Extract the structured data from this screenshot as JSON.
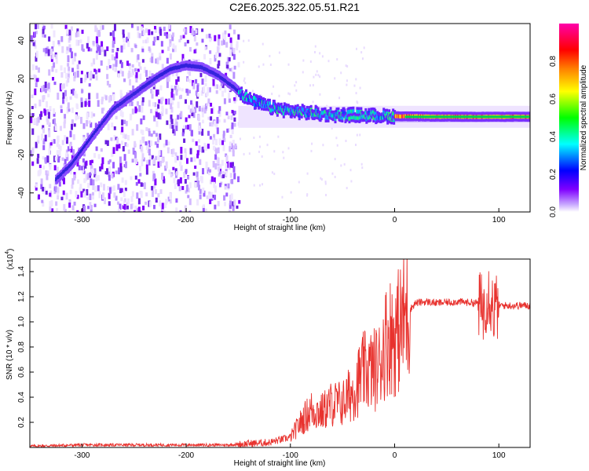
{
  "title": "C2E6.2025.322.05.51.R21",
  "chart_data": [
    {
      "type": "heatmap",
      "xlabel": "Height of straight line (km)",
      "ylabel": "Frequency (Hz)",
      "xlim": [
        -350,
        130
      ],
      "ylim": [
        -50,
        49
      ],
      "x_ticks": [
        "-300",
        "-200",
        "-100",
        "0",
        "100"
      ],
      "y_ticks": [
        "40",
        "20",
        "0",
        "-20",
        "-40"
      ],
      "colorbar": {
        "label": "Normalized spectral amplitude",
        "range": [
          0.0,
          1.0
        ],
        "ticks": [
          "0.0",
          "0.2",
          "0.4",
          "0.6",
          "0.8"
        ],
        "colors": [
          "#ffffff",
          "#7f00ff",
          "#0000ff",
          "#00ffff",
          "#00ff00",
          "#ffff00",
          "#ff8000",
          "#ff0000",
          "#ff00ff"
        ]
      },
      "noise_region_x": [
        -350,
        -150
      ],
      "signal_trace": {
        "x": [
          -325,
          -310,
          -290,
          -270,
          -250,
          -230,
          -215,
          -200,
          -185,
          -170,
          -155,
          -140,
          -120,
          -100,
          -80,
          -60,
          -40,
          -20,
          0,
          50,
          130
        ],
        "y": [
          -33,
          -25,
          -10,
          4,
          12,
          20,
          25,
          27,
          26,
          22,
          16,
          9,
          5,
          3,
          2,
          1,
          1,
          0.5,
          0.3,
          0,
          0
        ]
      },
      "grid": false
    },
    {
      "type": "line",
      "xlabel": "Height of straight line (km)",
      "ylabel": "SNR (10 * v/v)",
      "y_scale_note": "(x10",
      "y_scale_exp": "4",
      "xlim": [
        -350,
        130
      ],
      "ylim": [
        0.0,
        1.5
      ],
      "x_ticks": [
        "-300",
        "-200",
        "-100",
        "0",
        "100"
      ],
      "y_ticks": [
        "0.2",
        "0.4",
        "0.6",
        "0.8",
        "1.0",
        "1.2",
        "1.4"
      ],
      "series": [
        {
          "color": "#e8322e",
          "x": [
            -350,
            -300,
            -250,
            -200,
            -160,
            -140,
            -120,
            -100,
            -90,
            -80,
            -70,
            -60,
            -50,
            -40,
            -30,
            -20,
            -15,
            -10,
            -5,
            0,
            5,
            10,
            15,
            20,
            30,
            40,
            60,
            80,
            85,
            90,
            95,
            100,
            110,
            130
          ],
          "y": [
            0.01,
            0.02,
            0.02,
            0.02,
            0.02,
            0.03,
            0.04,
            0.08,
            0.2,
            0.3,
            0.28,
            0.35,
            0.35,
            0.45,
            0.6,
            0.62,
            0.65,
            0.82,
            0.9,
            0.88,
            0.95,
            1.05,
            1.1,
            1.15,
            1.16,
            1.15,
            1.16,
            1.15,
            1.1,
            1.25,
            1.1,
            1.13,
            1.13,
            1.13
          ]
        }
      ],
      "grid": false
    }
  ]
}
